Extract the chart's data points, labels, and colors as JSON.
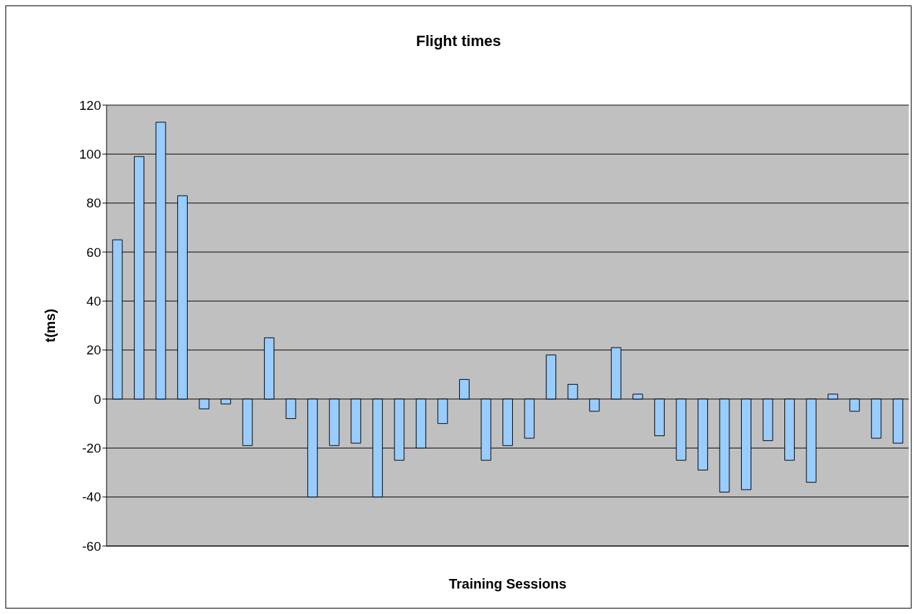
{
  "chart_data": {
    "type": "bar",
    "title": "Flight times",
    "xlabel": "Training Sessions",
    "ylabel": "t(ms)",
    "categories": [
      null,
      null,
      null,
      null,
      null,
      null,
      null,
      null,
      null,
      null,
      null,
      null,
      null,
      null,
      null,
      null,
      null,
      null,
      null,
      null,
      null,
      null,
      null,
      null,
      null,
      null,
      null,
      null,
      null,
      null,
      null,
      null,
      null,
      null,
      null,
      null,
      null
    ],
    "values": [
      65,
      99,
      113,
      83,
      -4,
      -2,
      -19,
      25,
      -8,
      -40,
      -19,
      -18,
      -40,
      -25,
      -20,
      -10,
      8,
      -25,
      -19,
      -16,
      18,
      6,
      -5,
      21,
      2,
      -15,
      -25,
      -29,
      -38,
      -37,
      -17,
      -25,
      -34,
      2,
      -5,
      -16,
      -18
    ],
    "color": "#99ccff",
    "ylim": [
      -60,
      120
    ],
    "yticks": [
      -60,
      -40,
      -20,
      0,
      20,
      40,
      60,
      80,
      100,
      120
    ],
    "grid": "y",
    "legend": false,
    "tick_labels": "y"
  }
}
